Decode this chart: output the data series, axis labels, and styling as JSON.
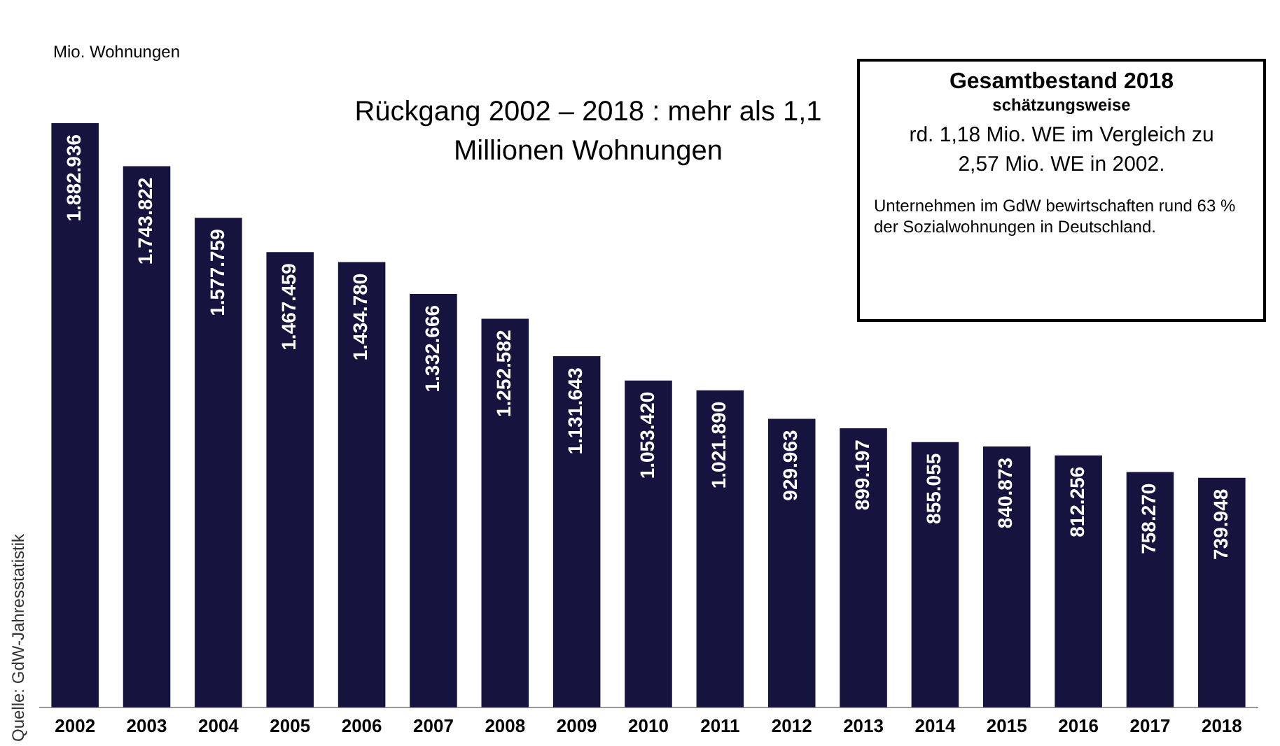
{
  "chart_data": {
    "type": "bar",
    "title": "Rückgang 2002 – 2018 : mehr als 1,1 Millionen Wohnungen",
    "ylabel": "Mio. Wohnungen",
    "categories": [
      "2002",
      "2003",
      "2004",
      "2005",
      "2006",
      "2007",
      "2008",
      "2009",
      "2010",
      "2011",
      "2012",
      "2013",
      "2014",
      "2015",
      "2016",
      "2017",
      "2018"
    ],
    "values": [
      1882936,
      1743822,
      1577759,
      1467459,
      1434780,
      1332666,
      1252582,
      1131643,
      1053420,
      1021890,
      929963,
      899197,
      855055,
      840873,
      812256,
      758270,
      739948
    ],
    "value_labels": [
      "1.882.936",
      "1.743.822",
      "1.577.759",
      "1.467.459",
      "1.434.780",
      "1.332.666",
      "1.252.582",
      "1.131.643",
      "1.053.420",
      "1.021.890",
      "929.963",
      "899.197",
      "855.055",
      "840.873",
      "812.256",
      "758.270",
      "739.948"
    ],
    "color": "#17133f",
    "grid": false,
    "annotations": [
      "Gesamtbestand 2018",
      "schätzungsweise",
      "rd. 1,18 Mio. WE im Vergleich zu 2,57 Mio. WE in 2002.",
      "Unternehmen im GdW bewirtschaften rund 63 % der Sozialwohnungen in Deutschland.",
      "Quelle: GdW-Jahresstatistik"
    ]
  }
}
